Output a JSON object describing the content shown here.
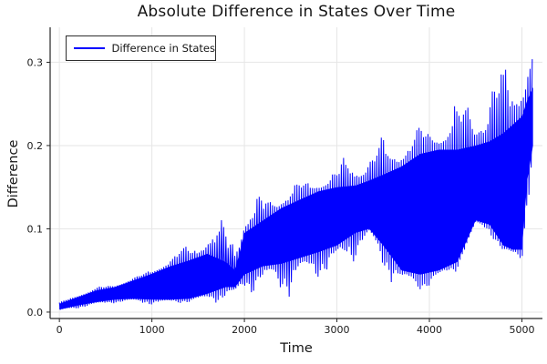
{
  "chart_data": {
    "type": "line",
    "title": "Absolute Difference in States Over Time",
    "xlabel": "Time",
    "ylabel": "Difference",
    "legend": {
      "position": "top-left",
      "entries": [
        {
          "label": "Difference in States",
          "color": "#0000ff"
        }
      ]
    },
    "line_color": "#0000ff",
    "grid": true,
    "grid_color": "#e6e6e6",
    "xlim": [
      -100,
      5222
    ],
    "ylim": [
      -0.0077,
      0.342
    ],
    "xticks": [
      0,
      1000,
      2000,
      3000,
      4000,
      5000
    ],
    "yticks": [
      0.0,
      0.1,
      0.2,
      0.3
    ],
    "oscillation_period": 24,
    "envelope": {
      "t": [
        0,
        200,
        400,
        600,
        800,
        1000,
        1200,
        1400,
        1600,
        1800,
        1900,
        2000,
        2200,
        2400,
        2600,
        2800,
        3000,
        3200,
        3350,
        3500,
        3700,
        3900,
        4100,
        4300,
        4500,
        4650,
        4800,
        4900,
        5000,
        5060,
        5120
      ],
      "upper": [
        0.012,
        0.022,
        0.03,
        0.034,
        0.042,
        0.052,
        0.07,
        0.086,
        0.105,
        0.112,
        0.118,
        0.124,
        0.142,
        0.15,
        0.158,
        0.168,
        0.174,
        0.205,
        0.206,
        0.21,
        0.215,
        0.222,
        0.24,
        0.255,
        0.27,
        0.287,
        0.31,
        0.322,
        0.331,
        0.331,
        0.33
      ],
      "band_hi": [
        0.01,
        0.018,
        0.026,
        0.03,
        0.038,
        0.046,
        0.055,
        0.062,
        0.07,
        0.06,
        0.05,
        0.095,
        0.11,
        0.125,
        0.135,
        0.145,
        0.15,
        0.152,
        0.158,
        0.165,
        0.175,
        0.19,
        0.195,
        0.195,
        0.2,
        0.205,
        0.215,
        0.225,
        0.235,
        0.255,
        0.27
      ],
      "band_lo": [
        0.003,
        0.008,
        0.012,
        0.015,
        0.016,
        0.015,
        0.015,
        0.016,
        0.022,
        0.03,
        0.03,
        0.045,
        0.055,
        0.058,
        0.065,
        0.072,
        0.08,
        0.095,
        0.1,
        0.08,
        0.05,
        0.045,
        0.05,
        0.06,
        0.11,
        0.105,
        0.08,
        0.075,
        0.075,
        0.16,
        0.2
      ],
      "lower": [
        0.001,
        0.004,
        0.007,
        0.01,
        0.01,
        0.008,
        0.01,
        0.011,
        0.011,
        0.012,
        0.01,
        0.022,
        0.026,
        0.016,
        0.022,
        0.038,
        0.042,
        0.06,
        0.088,
        0.044,
        0.026,
        0.022,
        0.033,
        0.05,
        0.1,
        0.095,
        0.062,
        0.061,
        0.06,
        0.12,
        0.19
      ]
    }
  }
}
